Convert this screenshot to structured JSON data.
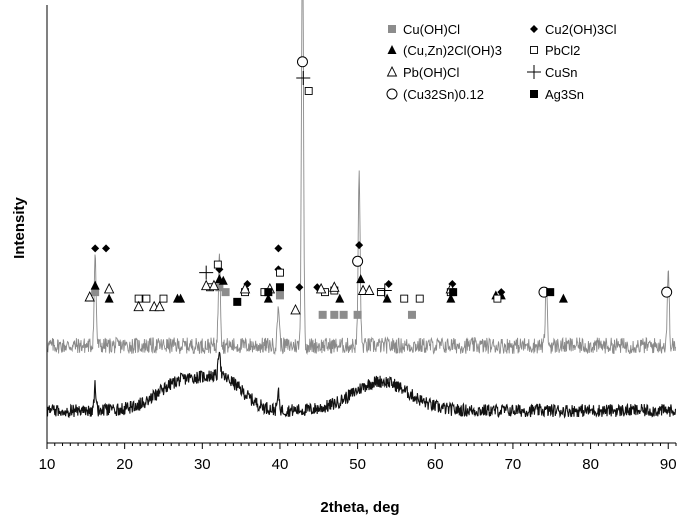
{
  "chart_data": {
    "type": "line",
    "xlabel": "2theta, deg",
    "ylabel": "Intensity",
    "xlim": [
      10,
      91
    ],
    "x_ticks": [
      10,
      20,
      30,
      40,
      50,
      60,
      70,
      80,
      90
    ],
    "grid": false,
    "legend_position": "top-right",
    "series": [
      {
        "style": "light-gray-noisy",
        "baseline": 0.6,
        "noise": 0.05,
        "peaks": [
          {
            "x": 16.2,
            "h": 0.55
          },
          {
            "x": 32.2,
            "h": 0.6
          },
          {
            "x": 39.8,
            "h": 0.25
          },
          {
            "x": 42.9,
            "h": 2.6
          },
          {
            "x": 50.2,
            "h": 1.05
          },
          {
            "x": 74.3,
            "h": 0.35
          },
          {
            "x": 90.0,
            "h": 0.45
          }
        ]
      },
      {
        "style": "black-noisy",
        "baseline": 0.2,
        "noise": 0.04,
        "peaks": [
          {
            "x": 16.2,
            "h": 0.15
          },
          {
            "x": 32.2,
            "h": 0.18
          },
          {
            "x": 39.8,
            "h": 0.1
          }
        ],
        "humps": [
          {
            "x": 27.5,
            "h": 0.18,
            "w": 4.5
          },
          {
            "x": 33.0,
            "h": 0.16,
            "w": 3.5
          },
          {
            "x": 53.0,
            "h": 0.18,
            "w": 5.0
          }
        ]
      }
    ],
    "phases": [
      {
        "name": "Cu(OH)Cl",
        "marker": "square-gray",
        "color": "#8c8c8c",
        "points": [
          [
            16.2,
            0.93
          ],
          [
            32.2,
            0.96
          ],
          [
            33.0,
            0.93
          ],
          [
            40.0,
            0.91
          ],
          [
            45.5,
            0.79
          ],
          [
            47.0,
            0.79
          ],
          [
            48.2,
            0.79
          ],
          [
            50.0,
            0.79
          ],
          [
            57.0,
            0.79
          ]
        ]
      },
      {
        "name": "Cu2(OH)3Cl",
        "marker": "diamond-black",
        "color": "#000000",
        "points": [
          [
            16.2,
            1.2
          ],
          [
            17.6,
            1.2
          ],
          [
            32.2,
            1.07
          ],
          [
            35.8,
            0.98
          ],
          [
            39.8,
            1.2
          ],
          [
            39.8,
            1.07
          ],
          [
            42.5,
            0.96
          ],
          [
            44.8,
            0.96
          ],
          [
            50.2,
            1.22
          ],
          [
            54.0,
            0.98
          ],
          [
            62.2,
            0.98
          ],
          [
            68.5,
            0.93
          ]
        ]
      },
      {
        "name": "(Cu,Zn)2Cl(OH)3",
        "marker": "triangle-black",
        "color": "#000000",
        "points": [
          [
            16.2,
            0.97
          ],
          [
            18.0,
            0.89
          ],
          [
            26.8,
            0.89
          ],
          [
            27.2,
            0.89
          ],
          [
            32.2,
            1.01
          ],
          [
            32.7,
            1.0
          ],
          [
            38.5,
            0.89
          ],
          [
            47.7,
            0.89
          ],
          [
            50.4,
            1.01
          ],
          [
            53.8,
            0.89
          ],
          [
            62.0,
            0.89
          ],
          [
            67.8,
            0.91
          ],
          [
            68.5,
            0.91
          ],
          [
            76.5,
            0.89
          ]
        ]
      },
      {
        "name": "PbCl2",
        "marker": "square-open",
        "color": "#000000",
        "points": [
          [
            21.8,
            0.89
          ],
          [
            22.8,
            0.89
          ],
          [
            25.0,
            0.89
          ],
          [
            31.0,
            0.96
          ],
          [
            32.0,
            1.1
          ],
          [
            35.5,
            0.93
          ],
          [
            38.0,
            0.93
          ],
          [
            40.0,
            1.05
          ],
          [
            43.7,
            2.17
          ],
          [
            45.8,
            0.93
          ],
          [
            47.0,
            0.94
          ],
          [
            53.0,
            0.93
          ],
          [
            56.0,
            0.89
          ],
          [
            58.0,
            0.89
          ],
          [
            62.0,
            0.93
          ],
          [
            68.0,
            0.89
          ]
        ]
      },
      {
        "name": "Pb(OH)Cl",
        "marker": "triangle-open",
        "color": "#000000",
        "points": [
          [
            15.5,
            0.9
          ],
          [
            18.0,
            0.95
          ],
          [
            21.8,
            0.84
          ],
          [
            23.8,
            0.84
          ],
          [
            24.5,
            0.84
          ],
          [
            30.5,
            0.97
          ],
          [
            31.5,
            0.97
          ],
          [
            35.5,
            0.95
          ],
          [
            38.7,
            0.95
          ],
          [
            42.0,
            0.82
          ],
          [
            45.3,
            0.95
          ],
          [
            47.0,
            0.96
          ],
          [
            50.7,
            0.94
          ],
          [
            51.5,
            0.94
          ],
          [
            62.0,
            0.95
          ]
        ]
      },
      {
        "name": "CuSn",
        "marker": "plus",
        "color": "#000000",
        "points": [
          [
            30.5,
            1.05
          ],
          [
            43.0,
            2.25
          ],
          [
            53.5,
            0.94
          ]
        ]
      },
      {
        "name": "(Cu32Sn)0.12",
        "marker": "circle-open",
        "color": "#000000",
        "points": [
          [
            42.9,
            2.35
          ],
          [
            50.0,
            1.12
          ],
          [
            74.0,
            0.93
          ],
          [
            89.8,
            0.93
          ]
        ]
      },
      {
        "name": "Ag3Sn",
        "marker": "square-black",
        "color": "#000000",
        "points": [
          [
            34.5,
            0.87
          ],
          [
            38.5,
            0.93
          ],
          [
            40.0,
            0.96
          ],
          [
            62.3,
            0.93
          ],
          [
            74.8,
            0.93
          ]
        ]
      }
    ],
    "legend_order": [
      [
        "Cu(OH)Cl",
        "Cu2(OH)3Cl"
      ],
      [
        "(Cu,Zn)2Cl(OH)3",
        "PbCl2"
      ],
      [
        "Pb(OH)Cl",
        "CuSn"
      ],
      [
        "(Cu32Sn)0.12",
        "Ag3Sn"
      ]
    ]
  }
}
